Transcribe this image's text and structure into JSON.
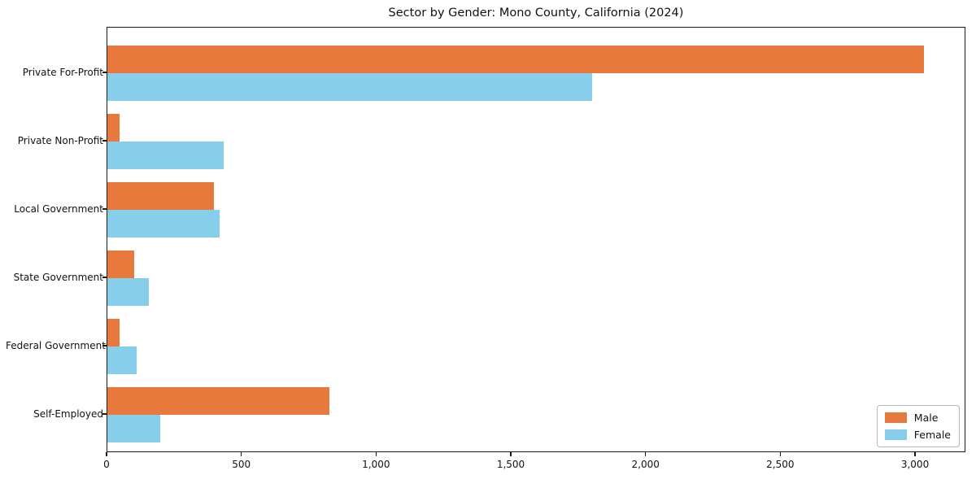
{
  "chart_data": {
    "type": "bar",
    "orientation": "horizontal",
    "title": "Sector by Gender: Mono County, California (2024)",
    "categories": [
      "Private For-Profit",
      "Private Non-Profit",
      "Local Government",
      "State Government",
      "Federal Government",
      "Self-Employed"
    ],
    "series": [
      {
        "name": "Male",
        "color": "#E8793D",
        "values": [
          3030,
          45,
          395,
          100,
          45,
          825
        ]
      },
      {
        "name": "Female",
        "color": "#87CEEB",
        "values": [
          1800,
          430,
          415,
          155,
          110,
          195
        ]
      }
    ],
    "xlabel": "",
    "ylabel": "",
    "xlim": [
      0,
      3187
    ],
    "xticks": [
      0,
      500,
      1000,
      1500,
      2000,
      2500,
      3000
    ],
    "xtick_labels": [
      "0",
      "500",
      "1,000",
      "1,500",
      "2,000",
      "2,500",
      "3,000"
    ],
    "grid": false,
    "legend_position": "lower right",
    "colors": {
      "male": "#E8793D",
      "female": "#87CEEB",
      "text": "#111111",
      "spine": "#1a1a1a"
    }
  }
}
